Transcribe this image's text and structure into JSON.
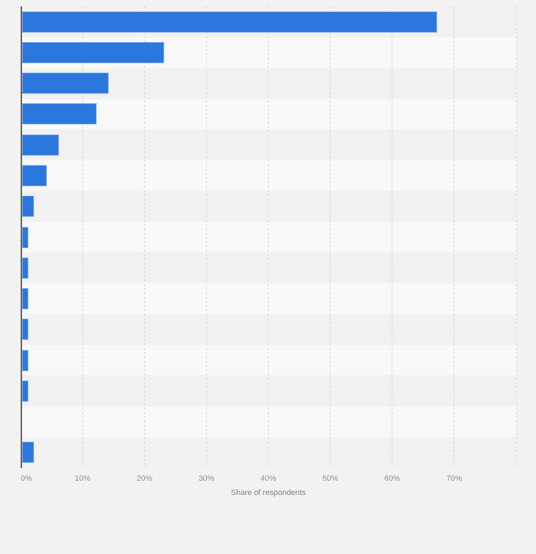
{
  "chart_data": {
    "type": "bar",
    "orientation": "horizontal",
    "title": "",
    "xlabel": "Share of respondents",
    "ylabel": "",
    "categories": [
      "",
      "",
      "",
      "",
      "",
      "",
      "",
      "",
      "",
      "",
      "",
      "",
      "",
      "",
      ""
    ],
    "values": [
      67,
      23,
      14,
      12,
      6,
      4,
      2,
      1,
      1,
      1,
      1,
      1,
      1,
      0,
      2
    ],
    "unit": "%",
    "xlim": [
      0,
      80
    ],
    "xticks": [
      {
        "value": 0,
        "label": "0%"
      },
      {
        "value": 10,
        "label": "10%"
      },
      {
        "value": 20,
        "label": "20%"
      },
      {
        "value": 30,
        "label": "30%"
      },
      {
        "value": 40,
        "label": "40%"
      },
      {
        "value": 50,
        "label": "50%"
      },
      {
        "value": 60,
        "label": "60%"
      },
      {
        "value": 70,
        "label": "70%"
      }
    ],
    "gridline_values": [
      10,
      20,
      30,
      40,
      50,
      60,
      70,
      80
    ],
    "grid": "vertical-dashed",
    "legend": "none",
    "value_labels_shown": false,
    "category_labels_shown": false
  },
  "colors": {
    "page_background": "#f2f2f2",
    "bar_fill": "#2b77dd",
    "bar_border": "rgba(255,255,255,0.5)",
    "row_stripe_dark": "#f1f1f2",
    "row_stripe_light": "#f8f8f9",
    "gridline": "#d4d4d4",
    "axis_line": "#5f5f5f",
    "tick_label": "#8f8f8f",
    "axis_title": "#7f7f7f"
  }
}
